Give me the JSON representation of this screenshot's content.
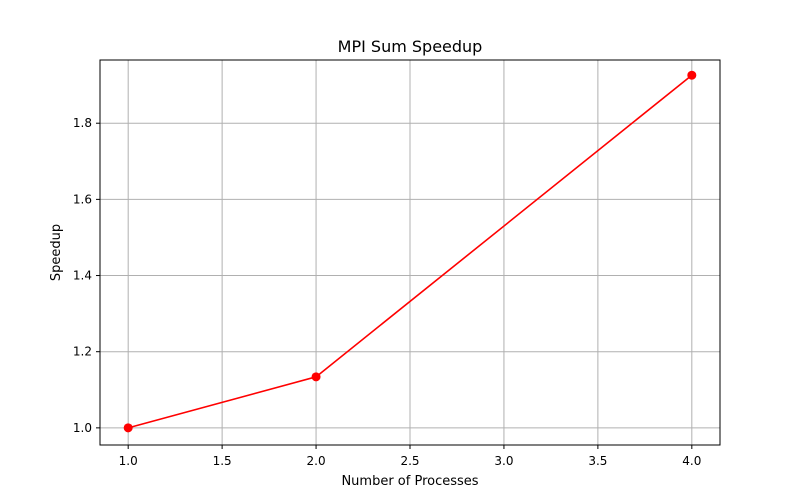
{
  "chart_data": {
    "type": "line",
    "title": "MPI Sum Speedup",
    "xlabel": "Number of Processes",
    "ylabel": "Speedup",
    "x": [
      1,
      2,
      4
    ],
    "series": [
      {
        "values": [
          1.0,
          1.134,
          1.926
        ],
        "color": "#ff0000",
        "marker": "circle"
      }
    ],
    "xlim": [
      0.85,
      4.15
    ],
    "ylim": [
      0.955,
      1.966
    ],
    "xticks": [
      1.0,
      1.5,
      2.0,
      2.5,
      3.0,
      3.5,
      4.0
    ],
    "xtick_labels": [
      "1.0",
      "1.5",
      "2.0",
      "2.5",
      "3.0",
      "3.5",
      "4.0"
    ],
    "yticks": [
      1.0,
      1.2,
      1.4,
      1.6,
      1.8
    ],
    "ytick_labels": [
      "1.0",
      "1.2",
      "1.4",
      "1.6",
      "1.8"
    ],
    "grid": true,
    "grid_color": "#b0b0b0",
    "legend": "none"
  }
}
